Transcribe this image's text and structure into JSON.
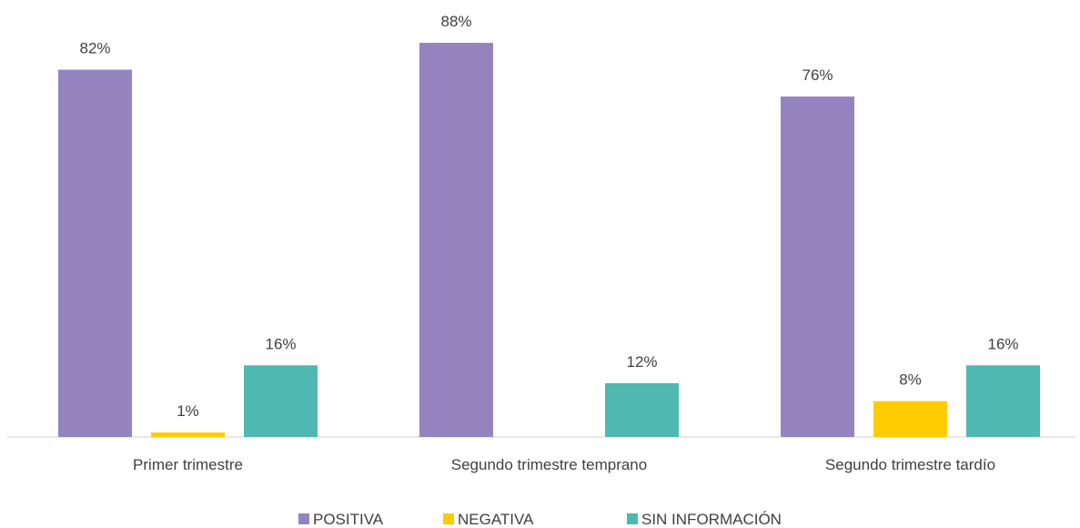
{
  "chart_data": {
    "type": "bar",
    "categories": [
      "Primer trimestre",
      "Segundo trimestre temprano",
      "Segundo trimestre tardío"
    ],
    "series": [
      {
        "name": "POSITIVA",
        "color": "#9384c0",
        "values": [
          82,
          88,
          76
        ],
        "value_labels": [
          "82%",
          "88%",
          "76%"
        ]
      },
      {
        "name": "NEGATIVA",
        "color": "#ffcc00",
        "values": [
          1,
          null,
          8
        ],
        "value_labels": [
          "1%",
          null,
          "8%"
        ]
      },
      {
        "name": "SIN INFORMACIÓN",
        "color": "#4fb8b0",
        "values": [
          16,
          12,
          16
        ],
        "value_labels": [
          "16%",
          "12%",
          "16%"
        ]
      }
    ]
  }
}
